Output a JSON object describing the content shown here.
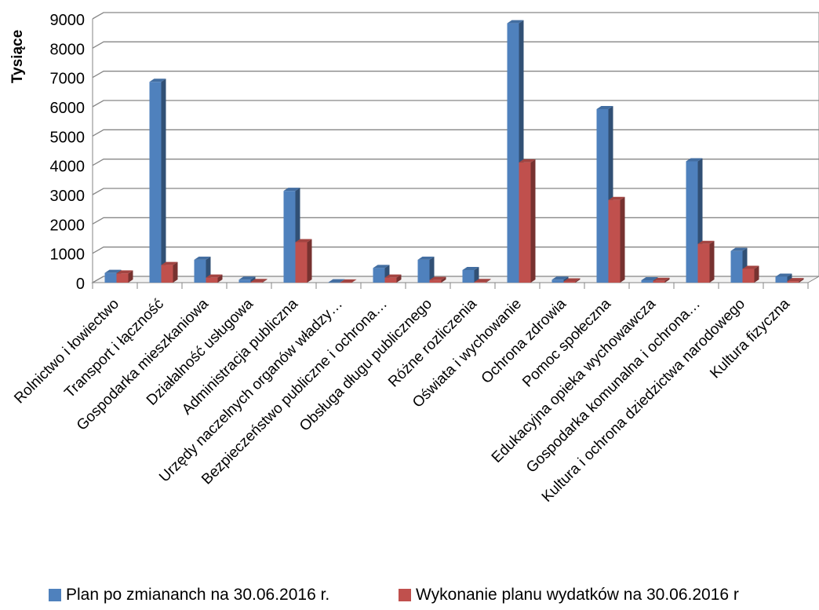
{
  "chart_data": {
    "type": "bar",
    "title": "",
    "ylabel": "Tysiące",
    "xlabel": "",
    "ylim": [
      0,
      9000
    ],
    "yticks": [
      0,
      1000,
      2000,
      3000,
      4000,
      5000,
      6000,
      7000,
      8000,
      9000
    ],
    "grid": true,
    "legend_position": "bottom",
    "style": "3d-clustered-column",
    "categories": [
      "Rolnictwo i łowiectwo",
      "Transport i łączność",
      "Gospodarka mieszkaniowa",
      "Działalność usługowa",
      "Administracja publiczna",
      "Urzędy naczelnych organów władzy…",
      "Bezpieczeństwo publiczne i ochrona…",
      "Obsługa długu publicznego",
      "Różne rozliczenia",
      "Oświata i wychowanie",
      "Ochrona zdrowia",
      "Pomoc społeczna",
      "Edukacyjna opieka wychowawcza",
      "Gospodarka komunalna i ochrona…",
      "Kultura i ochrona dziedzictwa narodowego",
      "Kultura fizyczna"
    ],
    "series": [
      {
        "name": "Plan po zmiananch na 30.06.2016 r.",
        "color": "#4f81bd",
        "values": [
          330,
          6850,
          780,
          100,
          3130,
          10,
          500,
          780,
          430,
          8850,
          100,
          5920,
          80,
          4140,
          1080,
          200
        ]
      },
      {
        "name": "Wykonanie planu wydatków na 30.06.2016 r",
        "color": "#c0504d",
        "values": [
          310,
          600,
          170,
          20,
          1380,
          5,
          170,
          90,
          20,
          4100,
          40,
          2820,
          60,
          1320,
          470,
          50
        ]
      }
    ]
  }
}
